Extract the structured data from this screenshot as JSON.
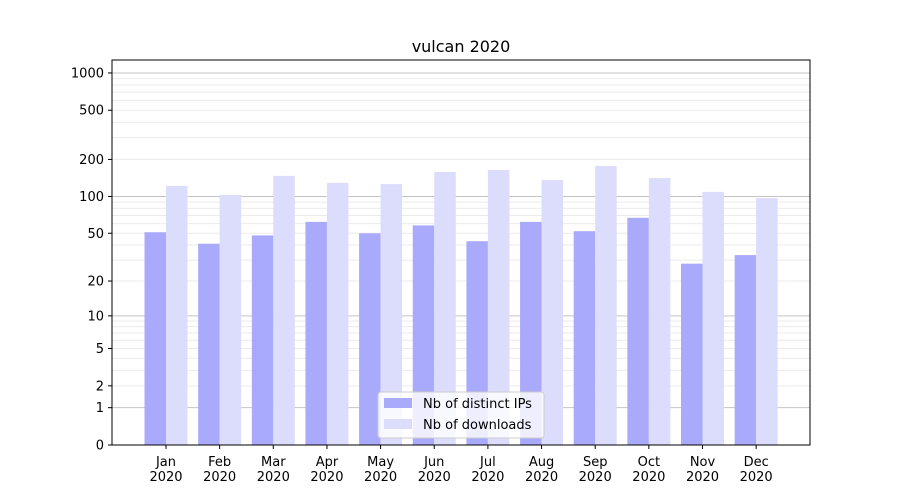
{
  "chart_data": {
    "type": "bar",
    "title": "vulcan 2020",
    "xlabel": "",
    "ylabel": "",
    "yscale": "log(1+x)",
    "ylim": [
      0,
      1200
    ],
    "yticks": [
      0,
      1,
      2,
      5,
      10,
      20,
      50,
      100,
      200,
      500,
      1000
    ],
    "grid": true,
    "legend_position": "bottom-center",
    "categories": [
      "Jan\n2020",
      "Feb\n2020",
      "Mar\n2020",
      "Apr\n2020",
      "May\n2020",
      "Jun\n2020",
      "Jul\n2020",
      "Aug\n2020",
      "Sep\n2020",
      "Oct\n2020",
      "Nov\n2020",
      "Dec\n2020"
    ],
    "series": [
      {
        "name": "Nb of distinct IPs",
        "color": "#aaaafc",
        "values": [
          51,
          41,
          48,
          62,
          50,
          58,
          43,
          62,
          52,
          67,
          28,
          33
        ]
      },
      {
        "name": "Nb of downloads",
        "color": "#dcdcfd",
        "values": [
          122,
          103,
          147,
          129,
          126,
          158,
          164,
          136,
          177,
          141,
          109,
          97
        ]
      }
    ]
  }
}
